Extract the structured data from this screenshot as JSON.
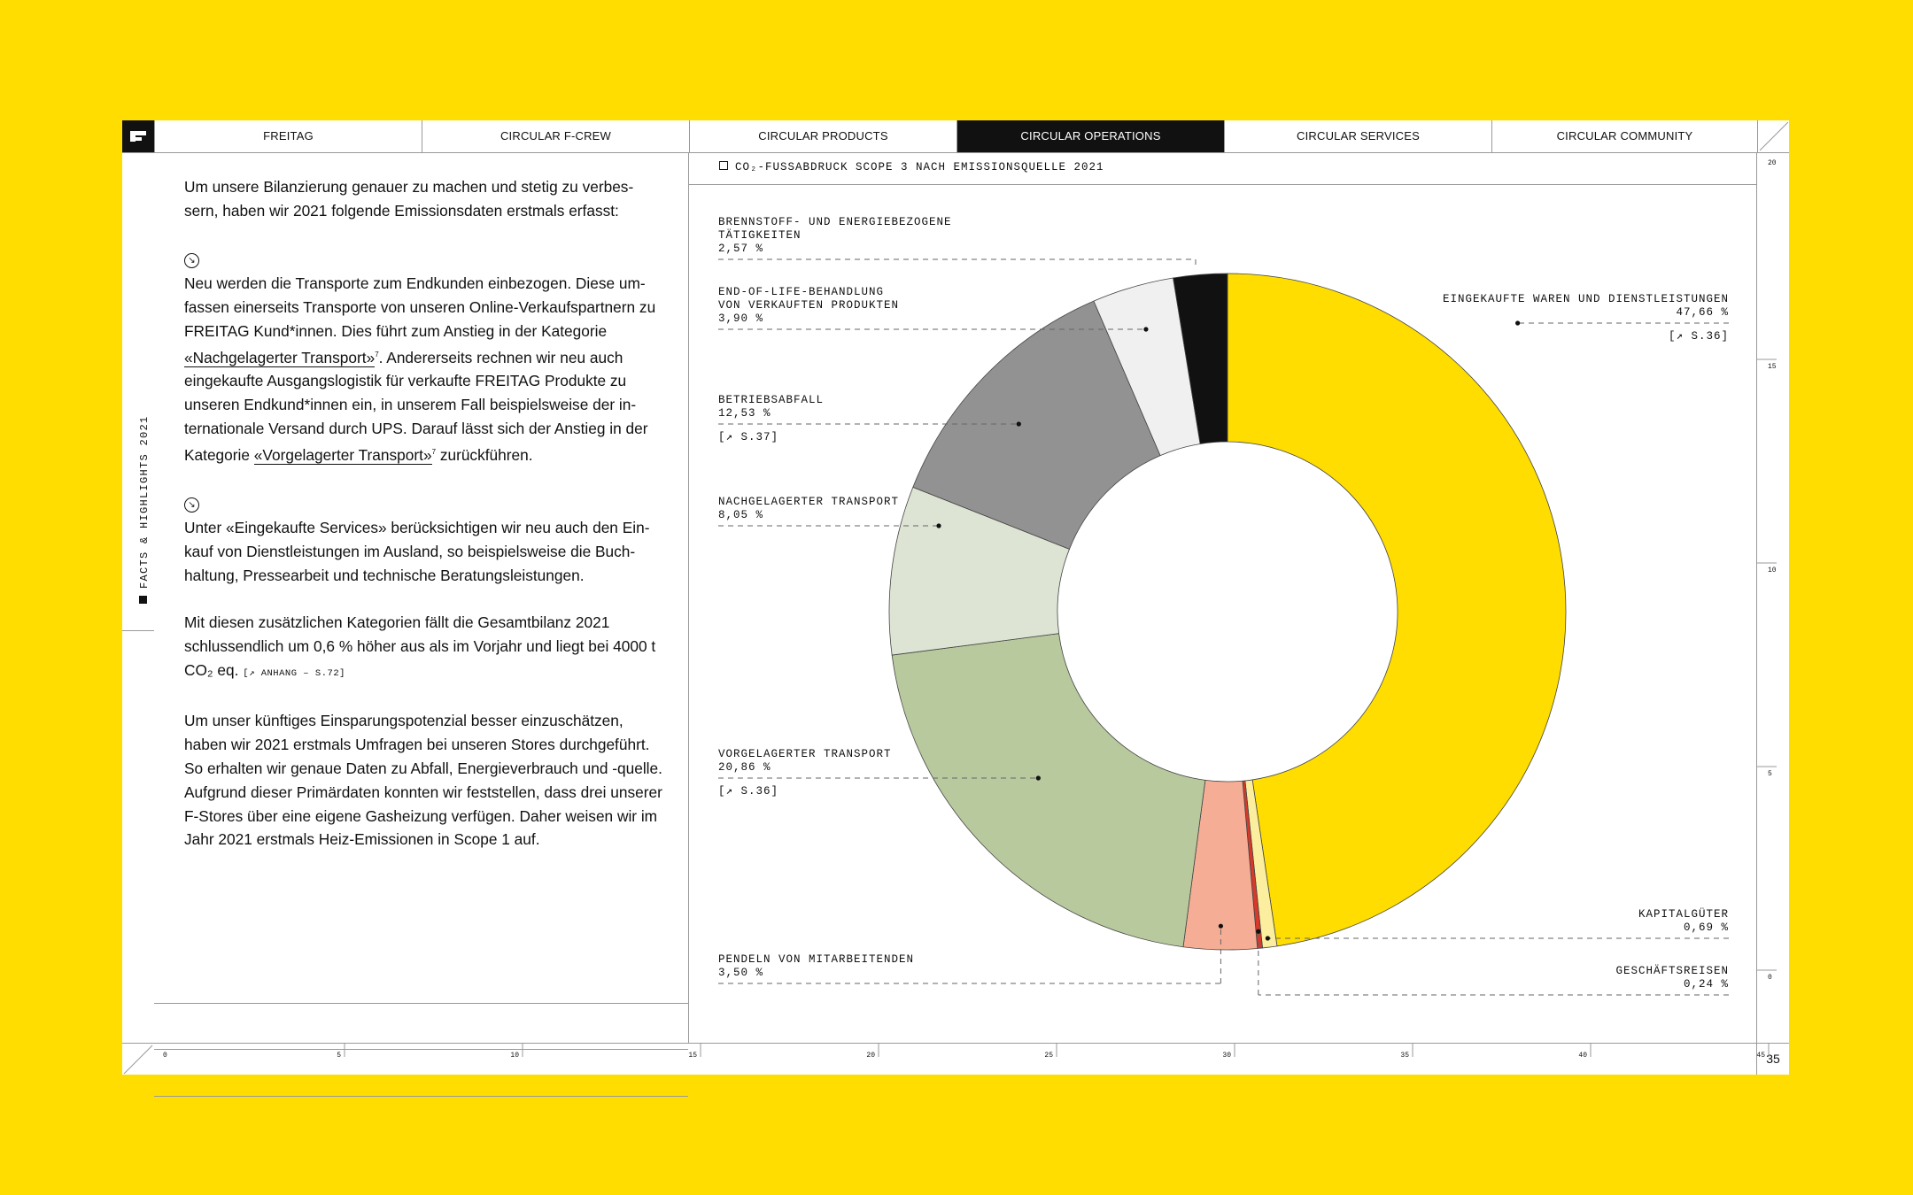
{
  "nav": {
    "tabs": [
      "FREITAG",
      "CIRCULAR F-CREW",
      "CIRCULAR PRODUCTS",
      "CIRCULAR OPERATIONS",
      "CIRCULAR SERVICES",
      "CIRCULAR COMMUNITY"
    ],
    "active": "CIRCULAR OPERATIONS"
  },
  "rail": {
    "label": "FACTS & HIGHLIGHTS 2021"
  },
  "text": {
    "p1": "Um unsere Bilanzierung genauer zu machen und stetig zu verbes-sern, haben wir 2021 folgende Emissionsdaten erstmals erfasst:",
    "p2_a": "Neu werden die Transporte zum Endkunden einbezogen. Diese um-fassen einerseits Transporte von unseren Online-Verkaufspartnern zu FREITAG Kund*innen. Dies führt zum Anstieg in der Kategorie ",
    "p2_link1": "«Nachgelagerter Transport»",
    "p2_b": ". Andererseits rechnen wir neu auch eingekaufte Ausgangslogistik für verkaufte FREITAG Produkte zu unseren Endkund*innen ein, in unserem Fall beispielsweise der in-ternationale Versand durch UPS. Darauf lässt sich der Anstieg in der Kategorie ",
    "p2_link2": "«Vorgelagerter Transport»",
    "p2_c": " zurückführen.",
    "p3": "Unter «Eingekaufte Services» berücksichtigen wir neu auch den Ein-kauf von Dienstleistungen im Ausland, so beispielsweise die Buch-haltung, Pressearbeit und technische Beratungsleistungen.",
    "p4": "Mit diesen zusätzlichen Kategorien fällt die Gesamtbilanz 2021 schlussendlich um 0,6 % höher aus als im Vorjahr und liegt bei 4000 t CO₂ eq.",
    "p4_ref": "[↗ ANHANG – S.72]",
    "p5": "Um unser künftiges Einsparungspotenzial besser einzuschätzen, haben wir 2021 erstmals Umfragen bei unseren Stores durchgeführt. So erhalten wir genaue Daten zu Abfall, Energieverbrauch und -quelle. Aufgrund dieser Primärdaten konnten wir feststellen, dass drei unserer F-Stores über eine eigene Gasheizung verfügen. Daher weisen wir im Jahr 2021 erstmals Heiz-Emissionen in Scope 1 auf.",
    "footnote": "7",
    "arrow": "↘"
  },
  "chart_data": {
    "type": "pie",
    "title": "CO₂-FUSSABDRUCK SCOPE 3 NACH EMISSIONSQUELLE 2021",
    "unit": "%",
    "slices": [
      {
        "name": "EINGEKAUFTE WAREN UND DIENSTLEISTUNGEN",
        "value": 47.66,
        "label": "47,66 %",
        "color": "#FFDD00",
        "ref": "[↗ S.36]"
      },
      {
        "name": "KAPITALGÜTER",
        "value": 0.69,
        "label": "0,69 %",
        "color": "#FBEE9E",
        "ref": ""
      },
      {
        "name": "GESCHÄFTSREISEN",
        "value": 0.24,
        "label": "0,24 %",
        "color": "#D63A2A",
        "ref": ""
      },
      {
        "name": "PENDELN VON MITARBEITENDEN",
        "value": 3.5,
        "label": "3,50 %",
        "color": "#F5AD95",
        "ref": ""
      },
      {
        "name": "VORGELAGERTER TRANSPORT",
        "value": 20.86,
        "label": "20,86 %",
        "color": "#B8C99E",
        "ref": "[↗ S.36]"
      },
      {
        "name": "NACHGELAGERTER TRANSPORT",
        "value": 8.05,
        "label": "8,05 %",
        "color": "#DDE4D3",
        "ref": ""
      },
      {
        "name": "BETRIEBSABFALL",
        "value": 12.53,
        "label": "12,53 %",
        "color": "#929292",
        "ref": "[↗ S.37]"
      },
      {
        "name": "END-OF-LIFE-BEHANDLUNG VON VERKAUFTEN PRODUKTEN",
        "value": 3.9,
        "label": "3,90 %",
        "color": "#F0F0F0",
        "ref": ""
      },
      {
        "name": "BRENNSTOFF- UND ENERGIEBEZOGENE TÄTIGKEITEN",
        "value": 2.57,
        "label": "2,57 %",
        "color": "#111111",
        "ref": ""
      }
    ],
    "label_lines": {
      "EINGEKAUFTE WAREN UND DIENSTLEISTUNGEN": [
        "EINGEKAUFTE WAREN UND DIENSTLEISTUNGEN"
      ],
      "KAPITALGÜTER": [
        "KAPITALGÜTER"
      ],
      "GESCHÄFTSREISEN": [
        "GESCHÄFTSREISEN"
      ],
      "PENDELN VON MITARBEITENDEN": [
        "PENDELN VON MITARBEITENDEN"
      ],
      "VORGELAGERTER TRANSPORT": [
        "VORGELAGERTER TRANSPORT"
      ],
      "NACHGELAGERTER TRANSPORT": [
        "NACHGELAGERTER TRANSPORT"
      ],
      "BETRIEBSABFALL": [
        "BETRIEBSABFALL"
      ],
      "END-OF-LIFE-BEHANDLUNG VON VERKAUFTEN PRODUKTEN": [
        "END-OF-LIFE-BEHANDLUNG",
        "VON VERKAUFTEN PRODUKTEN"
      ],
      "BRENNSTOFF- UND ENERGIEBEZOGENE TÄTIGKEITEN": [
        "BRENNSTOFF- UND ENERGIEBEZOGENE",
        "TÄTIGKEITEN"
      ]
    }
  },
  "axes": {
    "bottom_ticks": [
      "0",
      "5",
      "10",
      "15",
      "20",
      "25",
      "30",
      "35",
      "40",
      "45"
    ],
    "right_ticks": [
      "20",
      "15",
      "10",
      "5",
      "0"
    ]
  },
  "page_number": "35"
}
